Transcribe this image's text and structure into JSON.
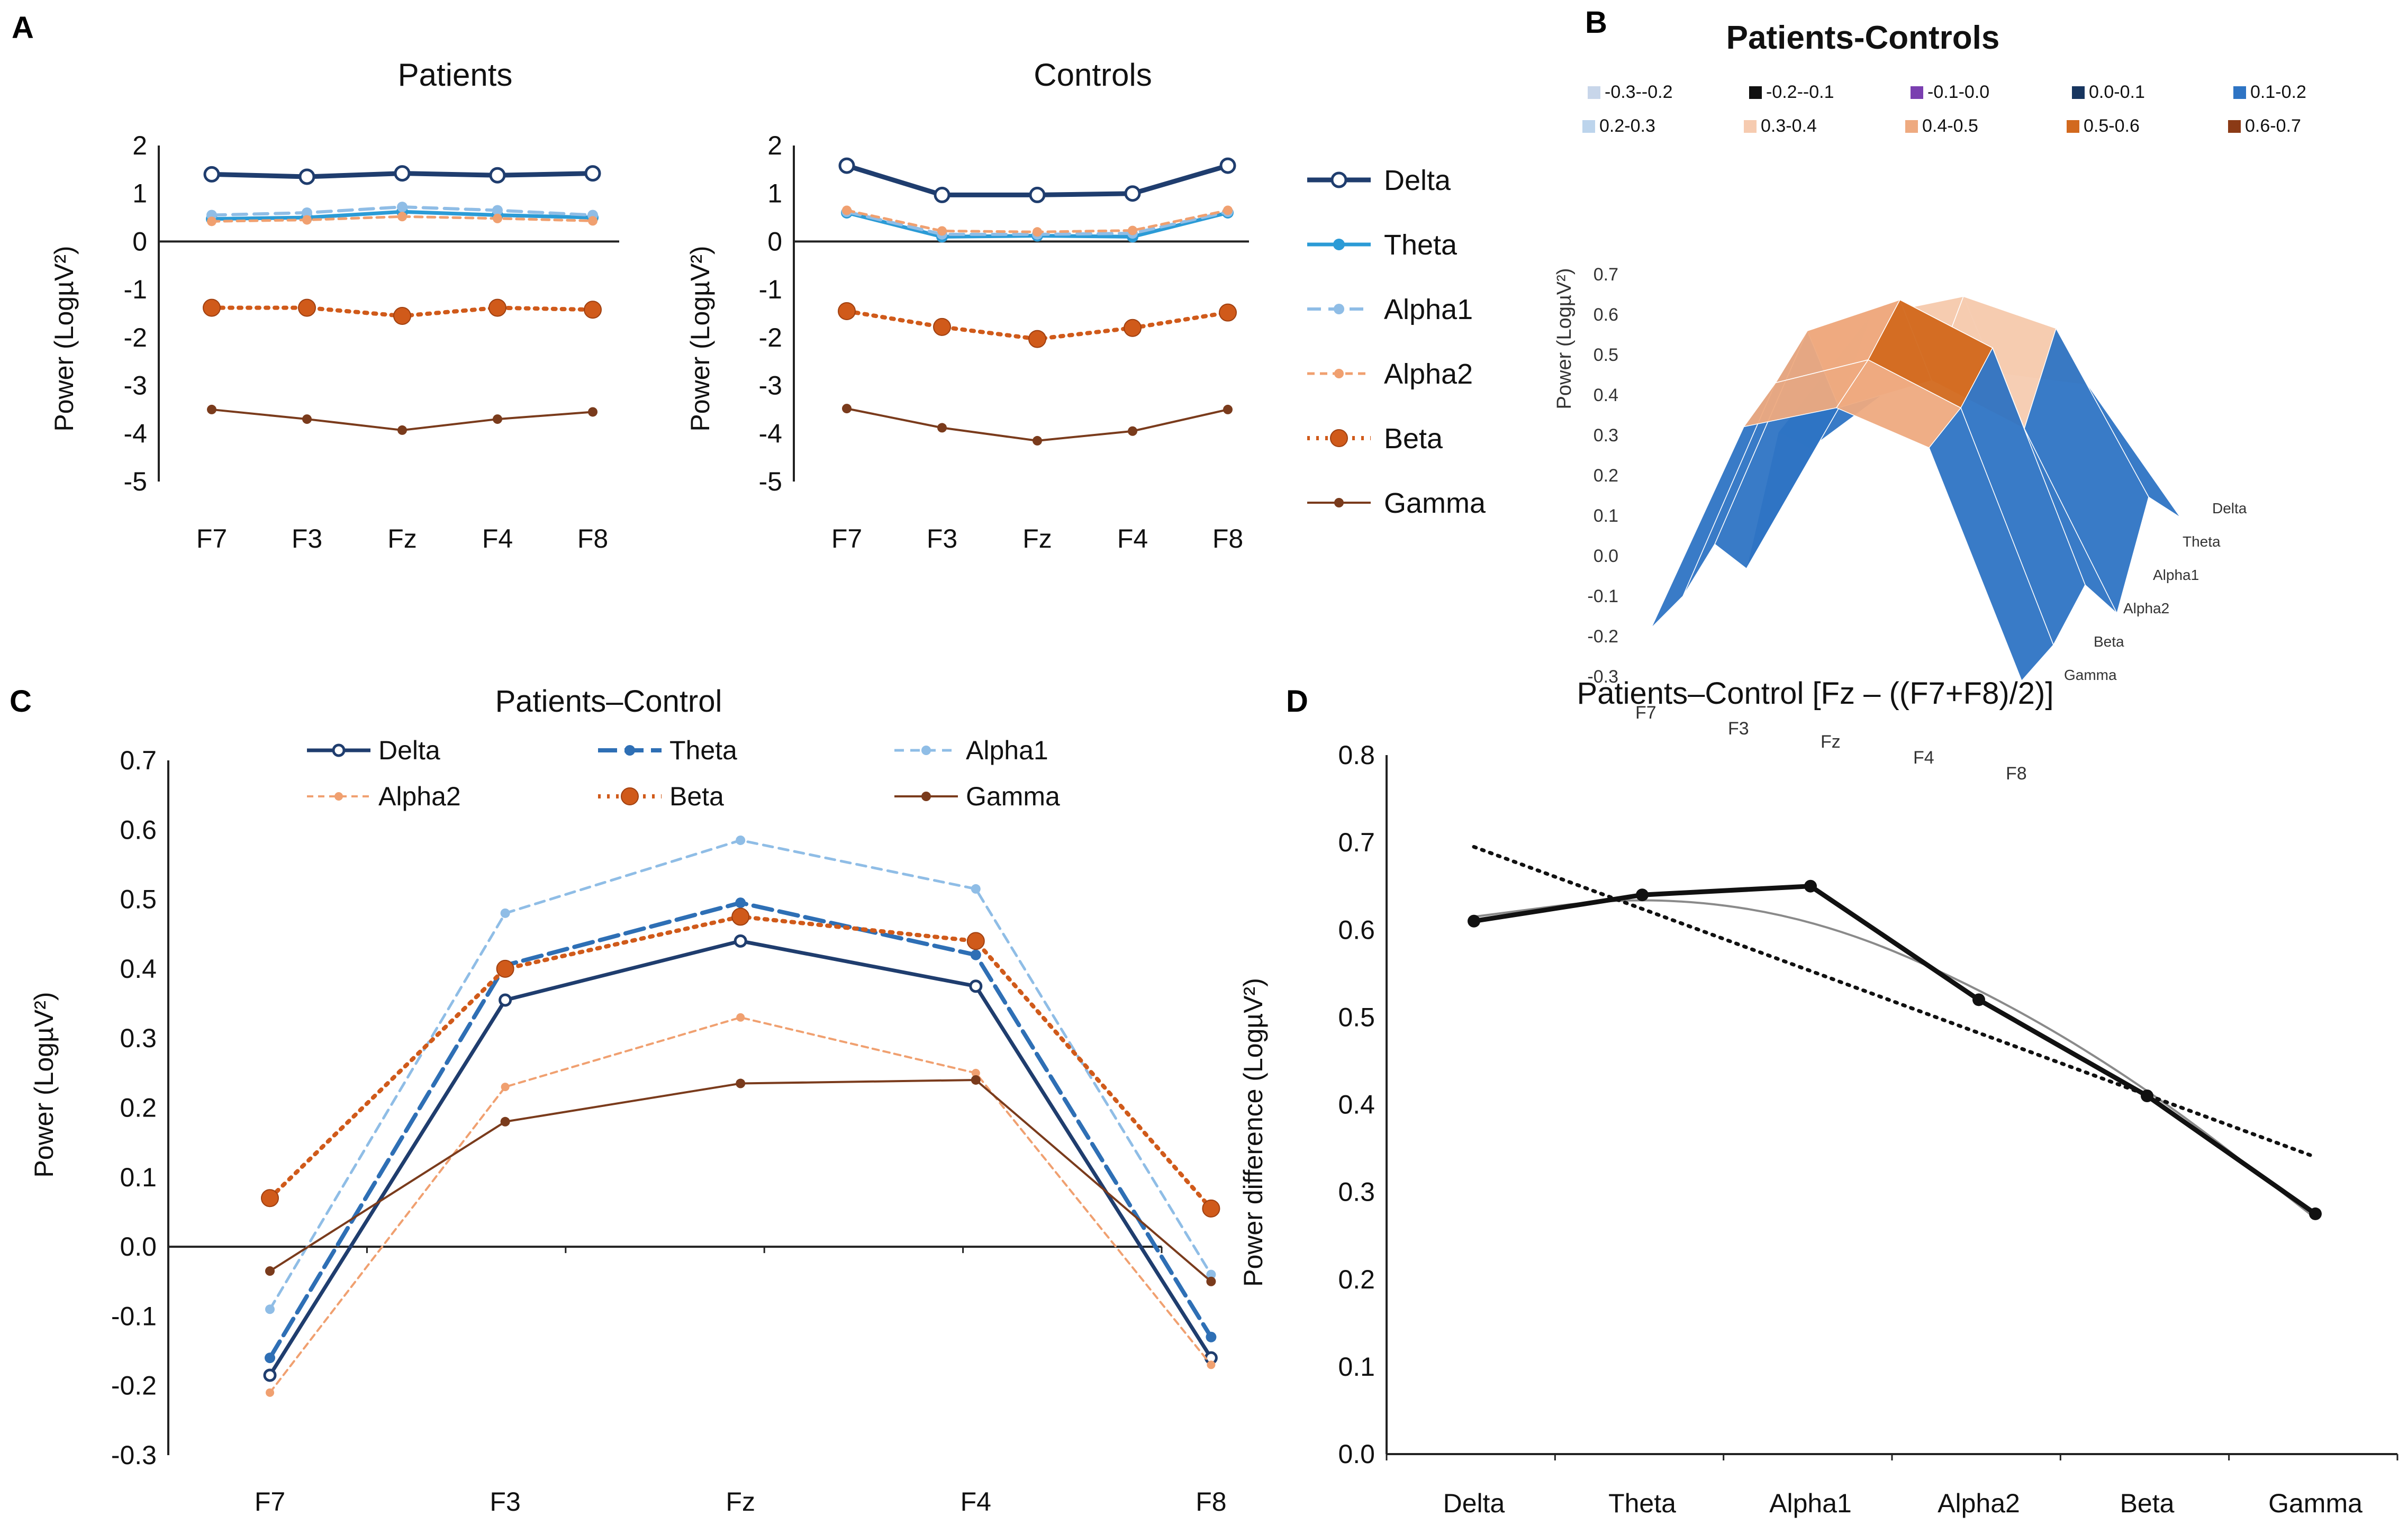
{
  "panel_letters": {
    "a": "A",
    "b": "B",
    "c": "C",
    "d": "D"
  },
  "colors": {
    "Delta": "#1f3d6e",
    "Theta": "#2b9bd6",
    "Alpha1": "#8fbde6",
    "Alpha2": "#f0a070",
    "Beta": "#d05a1a",
    "Gamma": "#7a3b1c"
  },
  "chart_data": [
    {
      "id": "A-patients",
      "type": "line",
      "title": "Patients",
      "xlabel": "",
      "ylabel": "Power (LogµV²)",
      "categories": [
        "F7",
        "F3",
        "Fz",
        "F4",
        "F8"
      ],
      "ylim": [
        -5,
        2
      ],
      "yticks": [
        "2",
        "1",
        "0",
        "-1",
        "-2",
        "-3",
        "-4",
        "-5"
      ],
      "series": [
        {
          "name": "Delta",
          "values": [
            1.4,
            1.35,
            1.42,
            1.38,
            1.42
          ]
        },
        {
          "name": "Theta",
          "values": [
            0.47,
            0.5,
            0.62,
            0.55,
            0.5
          ]
        },
        {
          "name": "Alpha1",
          "values": [
            0.55,
            0.6,
            0.72,
            0.65,
            0.55
          ]
        },
        {
          "name": "Alpha2",
          "values": [
            0.42,
            0.45,
            0.52,
            0.48,
            0.43
          ]
        },
        {
          "name": "Beta",
          "values": [
            -1.38,
            -1.38,
            -1.55,
            -1.38,
            -1.42
          ]
        },
        {
          "name": "Gamma",
          "values": [
            -3.5,
            -3.7,
            -3.93,
            -3.7,
            -3.55
          ]
        }
      ],
      "legend": [
        "Delta",
        "Theta",
        "Alpha1",
        "Alpha2",
        "Beta",
        "Gamma"
      ]
    },
    {
      "id": "A-controls",
      "type": "line",
      "title": "Controls",
      "xlabel": "",
      "ylabel": "Power (LogµV²)",
      "categories": [
        "F7",
        "F3",
        "Fz",
        "F4",
        "F8"
      ],
      "ylim": [
        -5,
        2
      ],
      "yticks": [
        "2",
        "1",
        "0",
        "-1",
        "-2",
        "-3",
        "-4",
        "-5"
      ],
      "series": [
        {
          "name": "Delta",
          "values": [
            1.58,
            0.97,
            0.97,
            1.0,
            1.58
          ]
        },
        {
          "name": "Theta",
          "values": [
            0.6,
            0.1,
            0.12,
            0.1,
            0.6
          ]
        },
        {
          "name": "Alpha1",
          "values": [
            0.62,
            0.15,
            0.15,
            0.17,
            0.62
          ]
        },
        {
          "name": "Alpha2",
          "values": [
            0.65,
            0.22,
            0.2,
            0.23,
            0.65
          ]
        },
        {
          "name": "Beta",
          "values": [
            -1.45,
            -1.78,
            -2.03,
            -1.8,
            -1.48
          ]
        },
        {
          "name": "Gamma",
          "values": [
            -3.48,
            -3.88,
            -4.15,
            -3.95,
            -3.5
          ]
        }
      ]
    },
    {
      "id": "B-surface",
      "type": "heatmap",
      "title": "Patients-Controls",
      "ylabel": "Power (LogµV²)",
      "electrodes": [
        "F7",
        "F3",
        "Fz",
        "F4",
        "F8"
      ],
      "bands": [
        "Delta",
        "Theta",
        "Alpha1",
        "Alpha2",
        "Beta",
        "Gamma"
      ],
      "zticks": [
        "0.7",
        "0.6",
        "0.5",
        "0.4",
        "0.3",
        "0.2",
        "0.1",
        "0.0",
        "-0.1",
        "-0.2",
        "-0.3"
      ],
      "zlim": [
        -0.3,
        0.7
      ],
      "values": [
        [
          -0.18,
          0.36,
          0.44,
          0.38,
          -0.16
        ],
        [
          -0.16,
          0.41,
          0.5,
          0.42,
          -0.13
        ],
        [
          -0.09,
          0.48,
          0.59,
          0.51,
          -0.04
        ],
        [
          -0.21,
          0.23,
          0.33,
          0.25,
          -0.17
        ],
        [
          0.07,
          0.4,
          0.48,
          0.44,
          0.06
        ],
        [
          -0.03,
          0.18,
          0.23,
          0.24,
          -0.05
        ]
      ],
      "color_legend": [
        {
          "label": "-0.3--0.2",
          "color": "#c8d6ea"
        },
        {
          "label": "-0.2--0.1",
          "color": "#111111"
        },
        {
          "label": "-0.1-0.0",
          "color": "#7a3fb0"
        },
        {
          "label": "0.0-0.1",
          "color": "#17355f"
        },
        {
          "label": "0.1-0.2",
          "color": "#2e74c4"
        },
        {
          "label": "0.2-0.3",
          "color": "#bcd4ec"
        },
        {
          "label": "0.3-0.4",
          "color": "#f6cbb0"
        },
        {
          "label": "0.4-0.5",
          "color": "#eeaa80"
        },
        {
          "label": "0.5-0.6",
          "color": "#d2691e"
        },
        {
          "label": "0.6-0.7",
          "color": "#8b3a16"
        }
      ]
    },
    {
      "id": "C-diff",
      "type": "line",
      "title": "Patients–Control",
      "xlabel": "",
      "ylabel": "Power (LogµV²)",
      "categories": [
        "F7",
        "F3",
        "Fz",
        "F4",
        "F8"
      ],
      "ylim": [
        -0.3,
        0.7
      ],
      "yticks": [
        "0.7",
        "0.6",
        "0.5",
        "0.4",
        "0.3",
        "0.2",
        "0.1",
        "0.0",
        "-0.1",
        "-0.2",
        "-0.3"
      ],
      "series": [
        {
          "name": "Delta",
          "values": [
            -0.185,
            0.355,
            0.44,
            0.375,
            -0.16
          ]
        },
        {
          "name": "Theta",
          "values": [
            -0.16,
            0.405,
            0.495,
            0.42,
            -0.13
          ]
        },
        {
          "name": "Alpha1",
          "values": [
            -0.09,
            0.48,
            0.585,
            0.515,
            -0.04
          ]
        },
        {
          "name": "Alpha2",
          "values": [
            -0.21,
            0.23,
            0.33,
            0.25,
            -0.17
          ]
        },
        {
          "name": "Beta",
          "values": [
            0.07,
            0.4,
            0.475,
            0.44,
            0.055
          ]
        },
        {
          "name": "Gamma",
          "values": [
            -0.035,
            0.18,
            0.235,
            0.24,
            -0.05
          ]
        }
      ],
      "legend": [
        "Delta",
        "Theta",
        "Alpha1",
        "Alpha2",
        "Beta",
        "Gamma"
      ]
    },
    {
      "id": "D-fz",
      "type": "line",
      "title": "Patients–Control [Fz – ((F7+F8)/2)]",
      "xlabel": "",
      "ylabel": "Power difference  (LogµV²)",
      "categories": [
        "Delta",
        "Theta",
        "Alpha1",
        "Alpha2",
        "Beta",
        "Gamma"
      ],
      "ylim": [
        0.0,
        0.8
      ],
      "yticks": [
        "0.8",
        "0.7",
        "0.6",
        "0.5",
        "0.4",
        "0.3",
        "0.2",
        "0.1",
        "0.0"
      ],
      "series": [
        {
          "name": "Fz-(F7+F8)/2",
          "values": [
            0.61,
            0.64,
            0.65,
            0.52,
            0.41,
            0.275
          ]
        },
        {
          "name": "Polynomial fit",
          "values": [
            0.615,
            0.64,
            0.615,
            0.535,
            0.42,
            0.27
          ]
        },
        {
          "name": "Linear trend",
          "values": [
            0.695,
            0.624,
            0.553,
            0.482,
            0.411,
            0.34
          ]
        }
      ]
    }
  ]
}
